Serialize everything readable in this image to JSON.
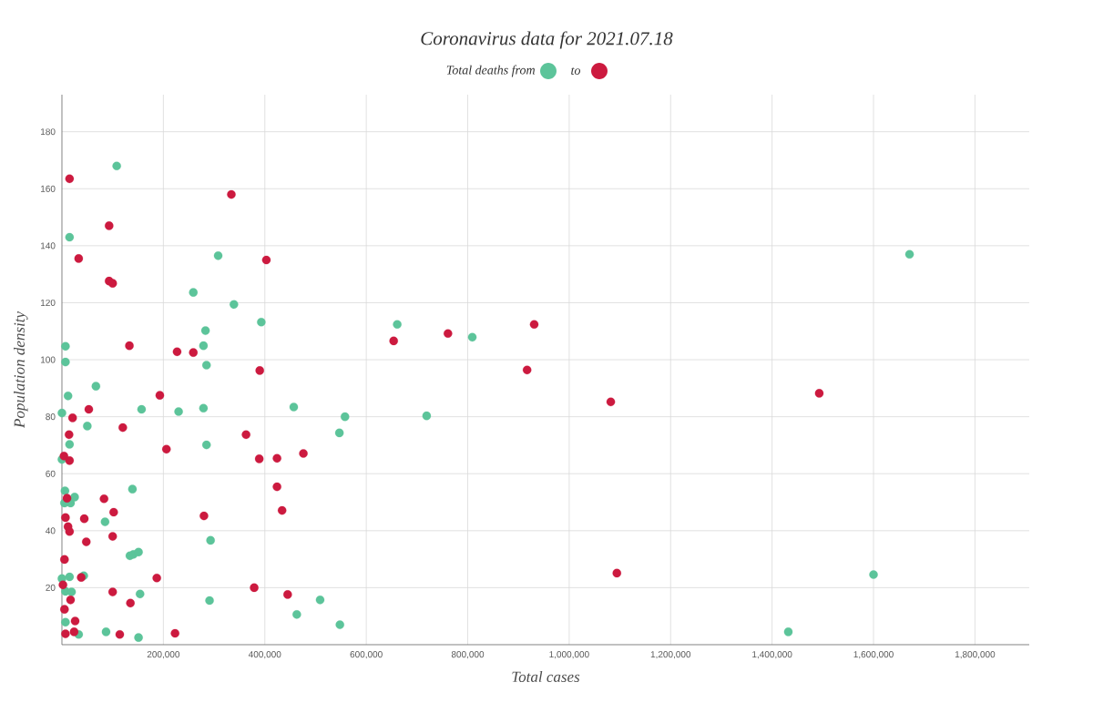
{
  "chart_data": {
    "type": "scatter",
    "title": "Coronavirus data for 2021.07.18",
    "legend_title": "Total deaths from",
    "annotations": [
      "to"
    ],
    "xlabel": "Total cases",
    "ylabel": "Population density",
    "xlim": [
      0,
      1907000
    ],
    "ylim": [
      0,
      193
    ],
    "xticks": [
      {
        "value": 200000,
        "label": "200,000"
      },
      {
        "value": 400000,
        "label": "400,000"
      },
      {
        "value": 600000,
        "label": "600,000"
      },
      {
        "value": 800000,
        "label": "800,000"
      },
      {
        "value": 1000000,
        "label": "1,000,000"
      },
      {
        "value": 1200000,
        "label": "1,200,000"
      },
      {
        "value": 1400000,
        "label": "1,400,000"
      },
      {
        "value": 1600000,
        "label": "1,600,000"
      },
      {
        "value": 1800000,
        "label": "1,800,000"
      }
    ],
    "yticks": [
      20,
      40,
      60,
      80,
      100,
      120,
      140,
      160,
      180
    ],
    "grid": true,
    "series": [
      {
        "color": "#5cc49a",
        "x": [
          108000,
          15000,
          308000,
          259000,
          339000,
          393000,
          661000,
          809000,
          283000,
          7000,
          279000,
          7000,
          285000,
          12000,
          67000,
          0,
          50000,
          157000,
          230000,
          279000,
          457000,
          558000,
          719000,
          547000,
          15000,
          285000,
          0,
          139000,
          6000,
          25000,
          17000,
          5000,
          85000,
          293000,
          134000,
          141000,
          151000,
          0,
          15000,
          43000,
          7000,
          19000,
          154000,
          291000,
          509000,
          463000,
          7000,
          548000,
          87000,
          33000,
          151000,
          1671000,
          1600000,
          1432000
        ],
        "values": [
          168,
          143,
          136.5,
          123.6,
          119.4,
          113.2,
          112.4,
          107.9,
          110.2,
          104.7,
          104.9,
          99.2,
          98.1,
          87.3,
          90.7,
          81.3,
          76.7,
          82.6,
          81.8,
          83,
          83.4,
          80,
          80.3,
          74.3,
          70.3,
          70.1,
          65,
          54.6,
          54,
          51.8,
          49.7,
          49.7,
          43.1,
          36.6,
          31.2,
          31.7,
          32.5,
          23.2,
          23.8,
          24.2,
          18.7,
          18.5,
          17.8,
          15.5,
          15.7,
          10.6,
          7.9,
          7,
          4.5,
          3.6,
          2.5,
          137,
          24.6,
          4.5
        ]
      },
      {
        "color": "#cc1a3f",
        "x": [
          15000,
          334000,
          93000,
          403000,
          33000,
          93000,
          100000,
          931000,
          654000,
          761000,
          133000,
          227000,
          259000,
          390000,
          917000,
          193000,
          21000,
          53000,
          120000,
          14000,
          363000,
          206000,
          476000,
          4000,
          15000,
          389000,
          424000,
          424000,
          10000,
          83000,
          102000,
          434000,
          280000,
          7000,
          44000,
          12000,
          15000,
          100000,
          48000,
          5000,
          187000,
          38000,
          2000,
          100000,
          379000,
          445000,
          17000,
          135000,
          5000,
          26000,
          7000,
          24000,
          114000,
          223000,
          1082000,
          1493000,
          1094000
        ],
        "values": [
          163.5,
          158,
          147,
          135,
          135.5,
          127.6,
          126.8,
          112.4,
          106.6,
          109.2,
          104.9,
          102.8,
          102.5,
          96.2,
          96.4,
          87.5,
          79.6,
          82.6,
          76.2,
          73.7,
          73.7,
          68.6,
          67.1,
          66.2,
          64.6,
          65.2,
          65.4,
          55.4,
          51.4,
          51.2,
          46.5,
          47.1,
          45.2,
          44.6,
          44.2,
          41.4,
          39.7,
          38,
          36.1,
          29.9,
          23.4,
          23.6,
          21,
          18.5,
          20,
          17.6,
          15.7,
          14.6,
          12.4,
          8.3,
          3.8,
          4.5,
          3.6,
          4,
          85.2,
          88.2,
          25.1
        ]
      }
    ]
  }
}
